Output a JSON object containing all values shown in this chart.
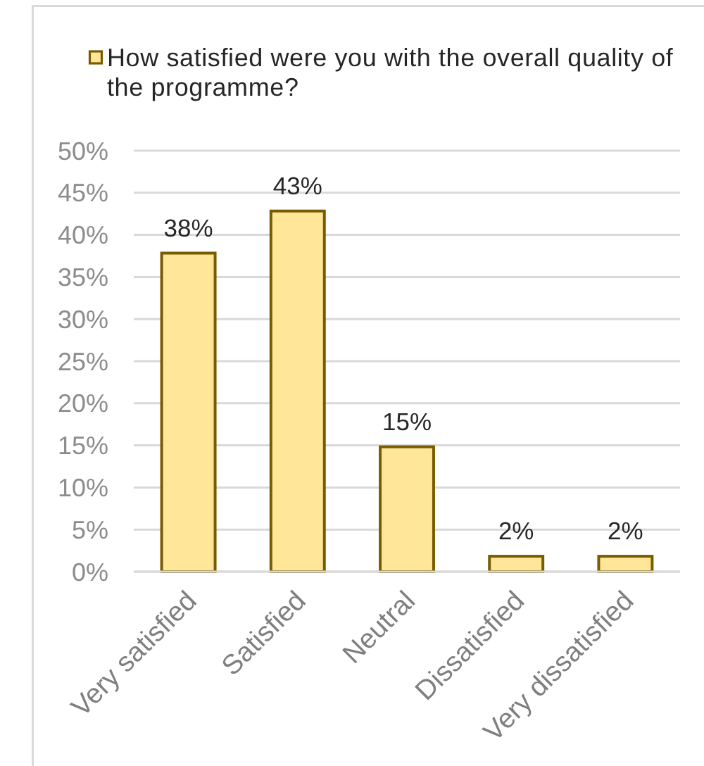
{
  "chart_data": {
    "type": "bar",
    "categories": [
      "Very satisfied",
      "Satisfied",
      "Neutral",
      "Dissatisfied",
      "Very dissatisfied"
    ],
    "series": [
      {
        "name": "How satisfied were you with the overall quality of the programme?",
        "color": "#ffe699",
        "values": [
          38,
          43,
          15,
          2,
          2
        ],
        "value_labels": [
          "38%",
          "43%",
          "15%",
          "2%",
          "2%"
        ]
      }
    ],
    "ylim": [
      0,
      50
    ],
    "yticks": [
      {
        "value": 0,
        "label": "0%"
      },
      {
        "value": 5,
        "label": "5%"
      },
      {
        "value": 10,
        "label": "10%"
      },
      {
        "value": 15,
        "label": "15%"
      },
      {
        "value": 20,
        "label": "20%"
      },
      {
        "value": 25,
        "label": "25%"
      },
      {
        "value": 30,
        "label": "30%"
      },
      {
        "value": 35,
        "label": "35%"
      },
      {
        "value": 40,
        "label": "40%"
      },
      {
        "value": 45,
        "label": "45%"
      },
      {
        "value": 50,
        "label": "50%"
      }
    ],
    "grid": "y",
    "legend": "top"
  }
}
